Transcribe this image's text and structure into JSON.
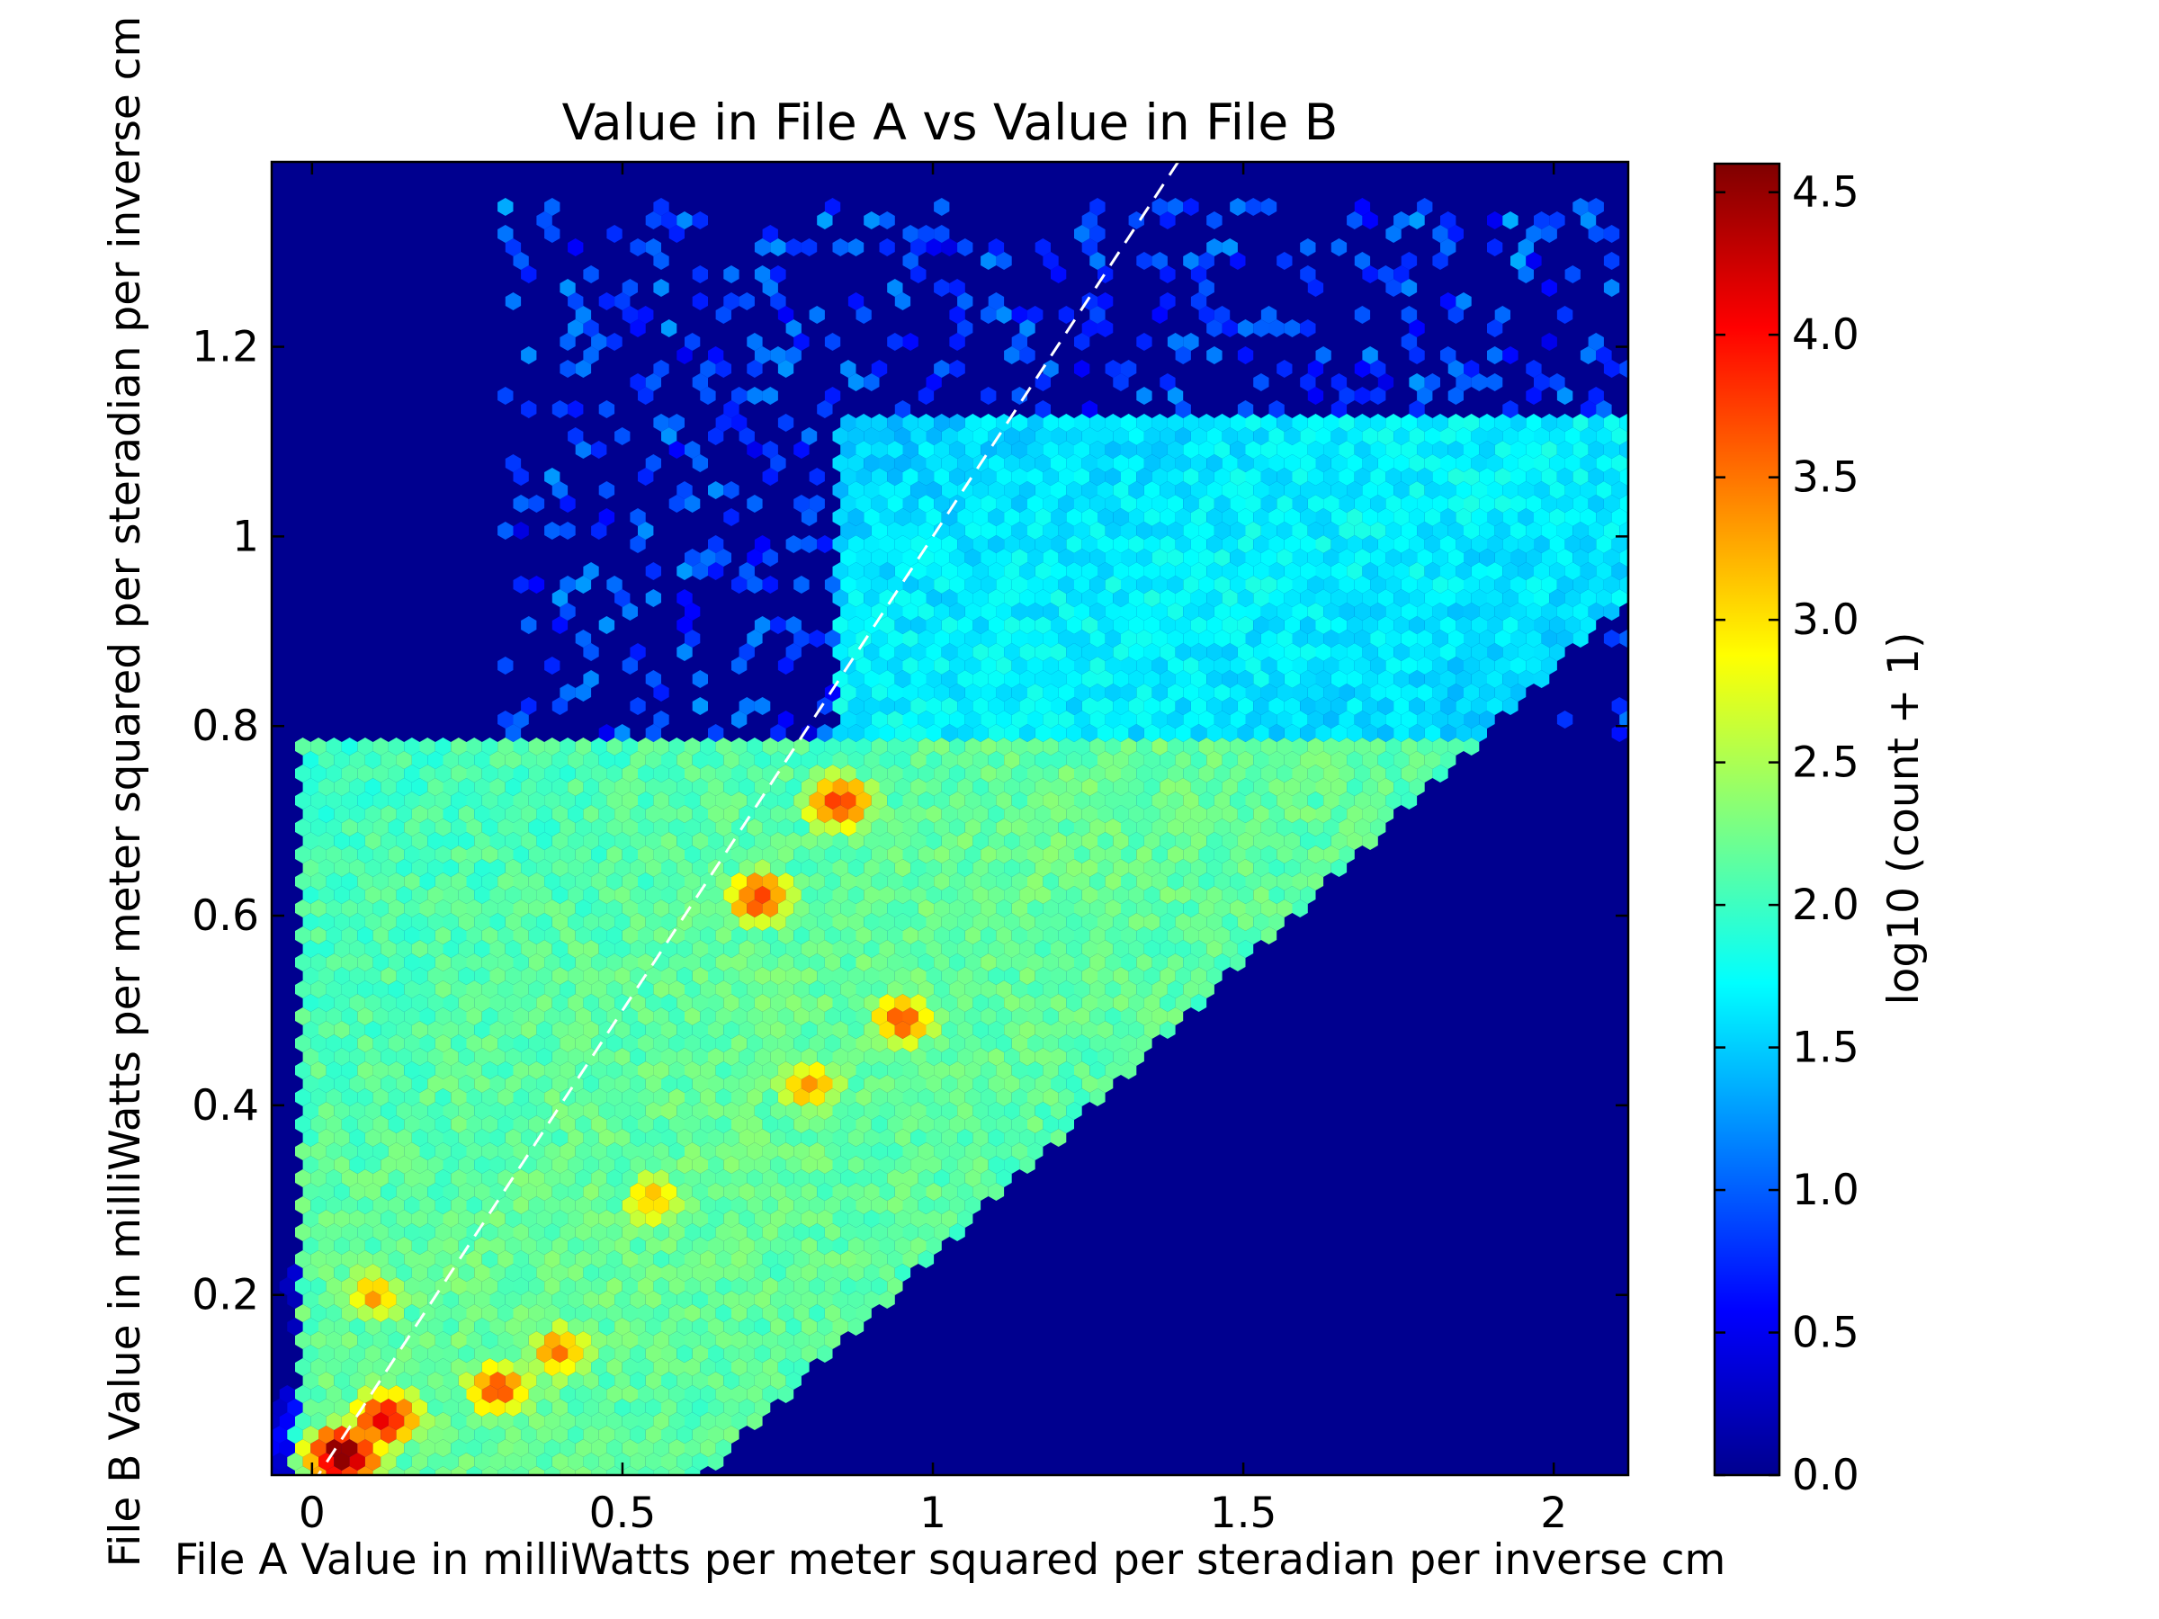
{
  "chart_data": {
    "type": "heatmap",
    "subtype": "hexbin",
    "title": "Value in File A vs Value in File B",
    "xlabel": "File A Value in milliWatts per meter squared per steradian per inverse cm",
    "ylabel": "File B Value in milliWatts per meter squared per steradian per inverse cm",
    "xlim": [
      -0.065,
      2.12
    ],
    "ylim": [
      0.01,
      1.395
    ],
    "x_ticks": [
      0,
      0.5,
      1,
      1.5,
      2
    ],
    "x_tick_labels": [
      "0",
      "0.5",
      "1",
      "1.5",
      "2"
    ],
    "y_ticks": [
      0.2,
      0.4,
      0.6,
      0.8,
      1,
      1.2
    ],
    "y_tick_labels": [
      "0.2",
      "0.4",
      "0.6",
      "0.8",
      "1",
      "1.2"
    ],
    "colorbar": {
      "label": "log10 (count + 1)",
      "colormap": "jet",
      "range": [
        0.0,
        4.6
      ],
      "ticks": [
        0.0,
        0.5,
        1.0,
        1.5,
        2.0,
        2.5,
        3.0,
        3.5,
        4.0,
        4.5
      ],
      "tick_labels": [
        "0.0",
        "0.5",
        "1.0",
        "1.5",
        "2.0",
        "2.5",
        "3.0",
        "3.5",
        "4.0",
        "4.5"
      ]
    },
    "reference_line": {
      "style": "dashed",
      "color": "#ffffff",
      "slope": 1,
      "intercept": 0,
      "label": "y = x"
    },
    "background_color": "#00008f",
    "density_hotspots": [
      {
        "x": 0.05,
        "y": 0.03,
        "log_count": 4.6
      },
      {
        "x": 0.12,
        "y": 0.07,
        "log_count": 4.0
      },
      {
        "x": 0.3,
        "y": 0.1,
        "log_count": 3.6
      },
      {
        "x": 0.4,
        "y": 0.14,
        "log_count": 3.4
      },
      {
        "x": 0.1,
        "y": 0.2,
        "log_count": 3.2
      },
      {
        "x": 0.55,
        "y": 0.3,
        "log_count": 3.2
      },
      {
        "x": 0.8,
        "y": 0.42,
        "log_count": 3.3
      },
      {
        "x": 0.95,
        "y": 0.49,
        "log_count": 3.5
      },
      {
        "x": 0.72,
        "y": 0.62,
        "log_count": 3.7
      },
      {
        "x": 0.85,
        "y": 0.72,
        "log_count": 3.8
      }
    ]
  }
}
